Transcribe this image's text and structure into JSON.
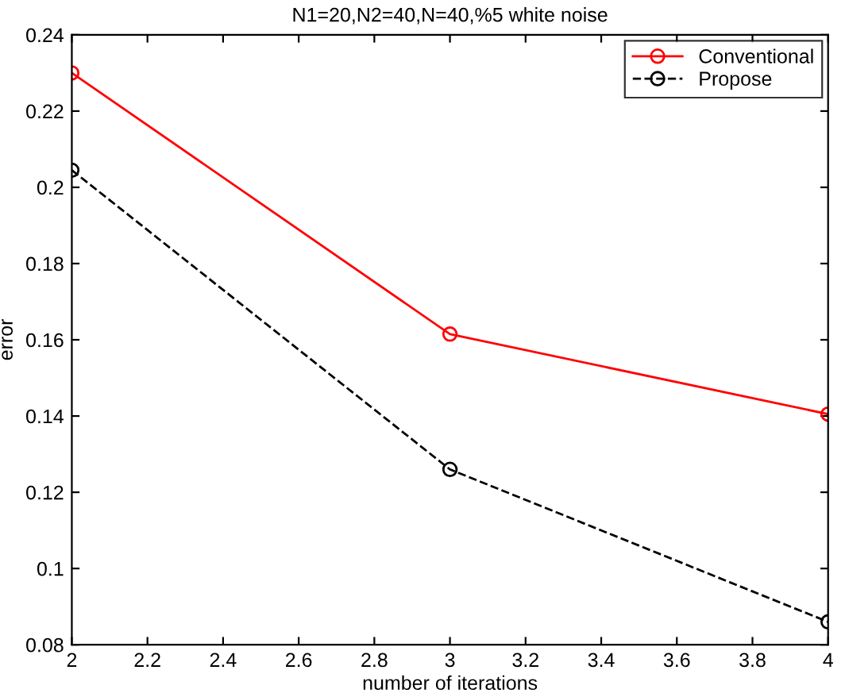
{
  "chart_data": {
    "type": "line",
    "title": "N1=20,N2=40,N=40,%5 white noise",
    "xlabel": "number of iterations",
    "ylabel": "error",
    "x": [
      2,
      3,
      4
    ],
    "series": [
      {
        "name": "Conventional",
        "color": "#ff0000",
        "values": [
          0.23,
          0.1615,
          0.1405
        ],
        "line_style": "solid"
      },
      {
        "name": "Propose",
        "color": "#000000",
        "values": [
          0.2045,
          0.126,
          0.086
        ],
        "line_style": "dashed"
      }
    ],
    "xlim": [
      2,
      4
    ],
    "xticks": [
      2,
      2.2,
      2.4,
      2.6,
      2.8,
      3,
      3.2,
      3.4,
      3.6,
      3.8,
      4
    ],
    "ylim": [
      0.08,
      0.24
    ],
    "yticks": [
      0.08,
      {
        "value": 0.1,
        "label": "0.1"
      },
      0.12,
      0.14,
      0.16,
      0.18,
      {
        "value": 0.2,
        "label": "0.2"
      },
      0.22,
      0.24
    ],
    "marker": "circle",
    "legend": "top right",
    "grid": false
  }
}
